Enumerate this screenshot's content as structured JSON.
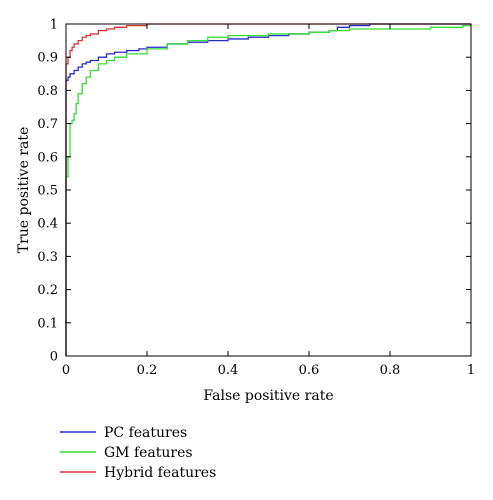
{
  "chart_data": {
    "type": "line",
    "title": "",
    "xlabel": "False positive rate",
    "ylabel": "True positive rate",
    "xlim": [
      0,
      1
    ],
    "ylim": [
      0,
      1
    ],
    "xticks": [
      0,
      0.2,
      0.4,
      0.6,
      0.8,
      1
    ],
    "xtick_labels": [
      "0",
      "0.2",
      "0.4",
      "0.6",
      "0.8",
      "1"
    ],
    "yticks": [
      0,
      0.1,
      0.2,
      0.3,
      0.4,
      0.5,
      0.6,
      0.7,
      0.8,
      0.9,
      1
    ],
    "ytick_labels": [
      "0",
      "0.1",
      "0.2",
      "0.3",
      "0.4",
      "0.5",
      "0.6",
      "0.7",
      "0.8",
      "0.9",
      "1"
    ],
    "grid": false,
    "legend_position": "below",
    "series": [
      {
        "name": "PC features",
        "color": "#2a2ad0",
        "x": [
          0,
          0,
          0.005,
          0.01,
          0.015,
          0.02,
          0.03,
          0.04,
          0.05,
          0.06,
          0.08,
          0.1,
          0.12,
          0.15,
          0.18,
          0.2,
          0.25,
          0.3,
          0.35,
          0.4,
          0.45,
          0.5,
          0.55,
          0.6,
          0.65,
          0.67,
          0.7,
          0.75,
          0.8,
          0.9,
          1
        ],
        "y": [
          0,
          0.83,
          0.84,
          0.85,
          0.85,
          0.86,
          0.87,
          0.88,
          0.885,
          0.89,
          0.9,
          0.91,
          0.915,
          0.92,
          0.925,
          0.93,
          0.94,
          0.945,
          0.95,
          0.955,
          0.96,
          0.965,
          0.97,
          0.975,
          0.98,
          0.99,
          0.995,
          1,
          1,
          1,
          1
        ]
      },
      {
        "name": "GM features",
        "color": "#33dd33",
        "x": [
          0,
          0,
          0.005,
          0.005,
          0.01,
          0.01,
          0.015,
          0.02,
          0.025,
          0.03,
          0.04,
          0.05,
          0.06,
          0.08,
          0.1,
          0.12,
          0.15,
          0.2,
          0.25,
          0.3,
          0.35,
          0.4,
          0.5,
          0.6,
          0.65,
          0.7,
          0.8,
          0.9,
          0.95,
          0.98,
          1
        ],
        "y": [
          0,
          0.54,
          0.54,
          0.6,
          0.65,
          0.7,
          0.71,
          0.73,
          0.76,
          0.79,
          0.82,
          0.84,
          0.86,
          0.88,
          0.89,
          0.9,
          0.91,
          0.925,
          0.94,
          0.95,
          0.96,
          0.965,
          0.97,
          0.975,
          0.98,
          0.985,
          0.985,
          0.99,
          0.99,
          0.995,
          1
        ]
      },
      {
        "name": "Hybrid features",
        "color": "#dd3333",
        "x": [
          0,
          0,
          0.005,
          0.01,
          0.015,
          0.02,
          0.03,
          0.04,
          0.05,
          0.06,
          0.08,
          0.1,
          0.12,
          0.15,
          0.2,
          0.3,
          0.4,
          0.5,
          0.7,
          1
        ],
        "y": [
          0,
          0.88,
          0.9,
          0.92,
          0.93,
          0.94,
          0.95,
          0.96,
          0.965,
          0.97,
          0.98,
          0.985,
          0.99,
          0.995,
          1,
          1,
          1,
          1,
          1,
          1
        ]
      }
    ]
  }
}
